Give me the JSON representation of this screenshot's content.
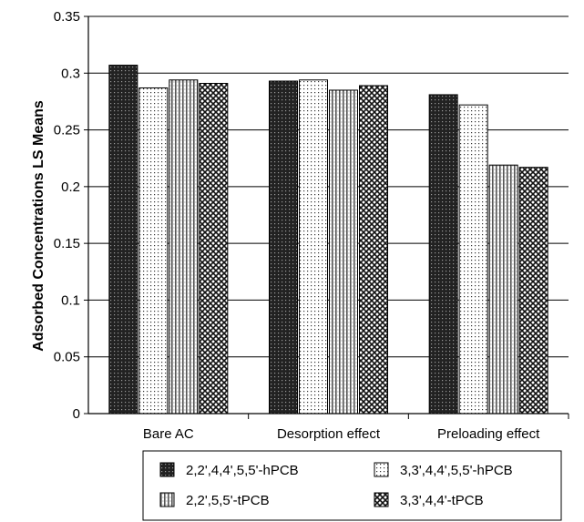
{
  "chart_data": {
    "type": "bar",
    "title": "",
    "xlabel": "",
    "ylabel": "Adsorbed Concentrations LS Means",
    "ylim": [
      0,
      0.35
    ],
    "yticks": [
      "0",
      "0.05",
      "0.1",
      "0.15",
      "0.2",
      "0.25",
      "0.3",
      "0.35"
    ],
    "ytick_values": [
      0,
      0.05,
      0.1,
      0.15,
      0.2,
      0.25,
      0.3,
      0.35
    ],
    "grid": true,
    "legend_position": "bottom",
    "categories": [
      "Bare AC",
      "Desorption effect",
      "Preloading effect"
    ],
    "series": [
      {
        "name": "2,2',4,4',5,5'-hPCB",
        "values": [
          0.307,
          0.293,
          0.281
        ],
        "pattern": "dark-dots"
      },
      {
        "name": "3,3',4,4',5,5'-hPCB",
        "values": [
          0.287,
          0.294,
          0.272
        ],
        "pattern": "light-dots"
      },
      {
        "name": "2,2',5,5'-tPCB",
        "values": [
          0.294,
          0.285,
          0.219
        ],
        "pattern": "vertical-stripes"
      },
      {
        "name": "3,3',4,4'-tPCB",
        "values": [
          0.291,
          0.289,
          0.217
        ],
        "pattern": "crosshatch"
      }
    ]
  }
}
